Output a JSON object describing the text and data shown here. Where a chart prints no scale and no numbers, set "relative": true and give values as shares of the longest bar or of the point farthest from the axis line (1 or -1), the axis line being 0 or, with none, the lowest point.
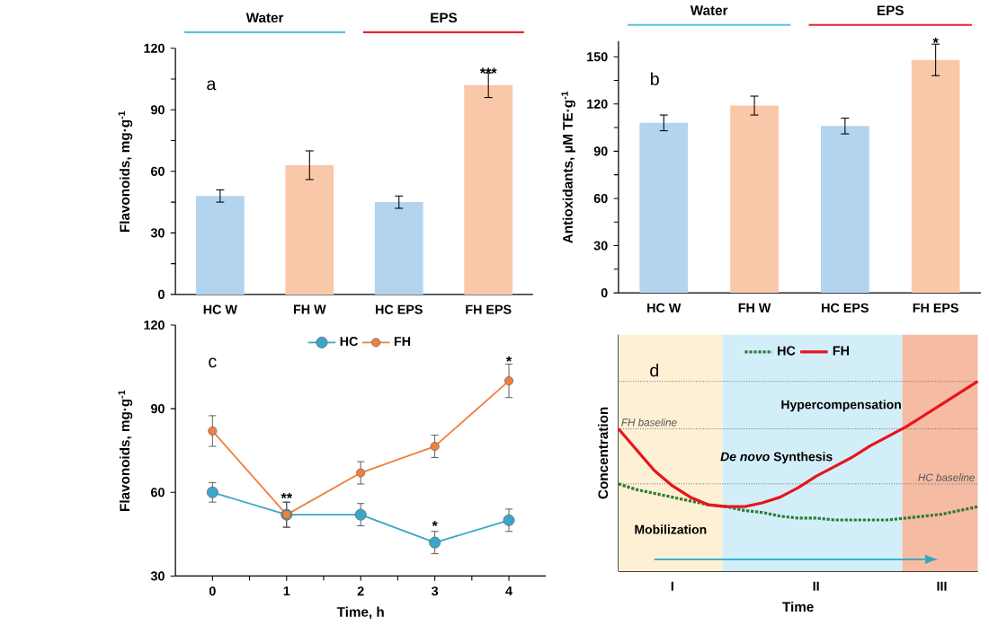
{
  "chart_data": [
    {
      "type": "bar",
      "ylabel": "Flavonoids, mg·g$^{-1}$",
      "categories": [
        "HC W",
        "FH W",
        "HC EPS",
        "FH EPS"
      ],
      "values": [
        48,
        63,
        45,
        102
      ],
      "errors": [
        3,
        7,
        3,
        6
      ],
      "colors": [
        "#b3d4ee",
        "#f9c8a8",
        "#b3d4ee",
        "#f9c8a8"
      ],
      "ylim": [
        0,
        120
      ],
      "yticks": [
        0,
        30,
        60,
        90,
        120
      ],
      "annotations": [
        "a",
        "Water",
        "EPS",
        {
          "text": "***",
          "x": "FH EPS",
          "y": 108
        }
      ]
    },
    {
      "type": "bar",
      "ylabel": "Antioxidants, µM TE·g$^{-1}$",
      "categories": [
        "HC W",
        "FH W",
        "HC EPS",
        "FH EPS"
      ],
      "values": [
        108,
        119,
        106,
        148
      ],
      "errors": [
        5,
        6,
        5,
        10
      ],
      "colors": [
        "#b3d4ee",
        "#f9c8a8",
        "#b3d4ee",
        "#f9c8a8"
      ],
      "ylim": [
        0,
        160
      ],
      "yticks": [
        0,
        30,
        60,
        90,
        120,
        150
      ],
      "annotations": [
        "b",
        "Water",
        "EPS",
        {
          "text": "*",
          "x": "FH EPS",
          "y": 159
        }
      ]
    },
    {
      "type": "line",
      "xlabel": "Time, h",
      "ylabel": "Flavonoids, mg·g$^{-1}$",
      "x": [
        0,
        1,
        2,
        3,
        4
      ],
      "xlim": [
        -0.5,
        4.5
      ],
      "xticks": [
        0,
        1,
        2,
        3,
        4
      ],
      "ylim": [
        30,
        120
      ],
      "yticks": [
        30,
        60,
        90,
        120
      ],
      "marker": "circle",
      "legend": "top",
      "series": [
        {
          "name": "HC",
          "color": "#3aa6c8",
          "values": [
            60,
            52,
            52,
            42,
            50
          ],
          "errors": [
            3.5,
            4.5,
            4,
            4,
            4
          ]
        },
        {
          "name": "FH",
          "color": "#f07f3c",
          "values": [
            82,
            52,
            67,
            76.5,
            100
          ],
          "errors": [
            5.5,
            4.5,
            4,
            4,
            6
          ]
        }
      ],
      "annotations": [
        "c",
        {
          "text": "**",
          "x": 1,
          "y": 58
        },
        {
          "text": "*",
          "x": 3,
          "y": 48
        },
        {
          "text": "*",
          "x": 4,
          "y": 107
        }
      ]
    },
    {
      "type": "line",
      "relative": true,
      "xlabel": "Time",
      "ylabel": "Concentration",
      "legend": "top",
      "categories": [
        null,
        null,
        null,
        "I",
        null,
        null,
        null,
        null,
        null,
        null,
        null,
        "II",
        null,
        null,
        null,
        null,
        null,
        null,
        "III",
        null,
        null
      ],
      "series": [
        {
          "name": "HC",
          "color": "#2e7d32",
          "line_style": "dotted",
          "values": [
            0.46,
            0.43,
            0.41,
            0.39,
            0.37,
            0.35,
            0.34,
            0.32,
            0.31,
            0.29,
            0.28,
            0.28,
            0.27,
            0.27,
            0.27,
            0.27,
            0.28,
            0.29,
            0.3,
            0.32,
            0.34
          ]
        },
        {
          "name": "FH",
          "color": "#e8141c",
          "line_style": "solid",
          "values": [
            0.75,
            0.64,
            0.53,
            0.45,
            0.39,
            0.35,
            0.34,
            0.34,
            0.36,
            0.39,
            0.44,
            0.5,
            0.55,
            0.6,
            0.66,
            0.71,
            0.76,
            0.82,
            0.88,
            0.94,
            1.0
          ]
        }
      ],
      "ref_lines": [
        {
          "axis": "y",
          "value": 1.0,
          "color": "#555555",
          "line_style": "dotted"
        },
        {
          "axis": "y",
          "value": 0.75,
          "label": "FH baseline",
          "color": "#555555",
          "line_style": "dotted"
        },
        {
          "axis": "y",
          "value": 0.46,
          "label": "HC baseline",
          "color": "#555555",
          "line_style": "dotted"
        }
      ],
      "annotations": [
        "d",
        "Mobilization",
        "*De novo* Synthesis",
        "Hypercompensation"
      ]
    }
  ]
}
